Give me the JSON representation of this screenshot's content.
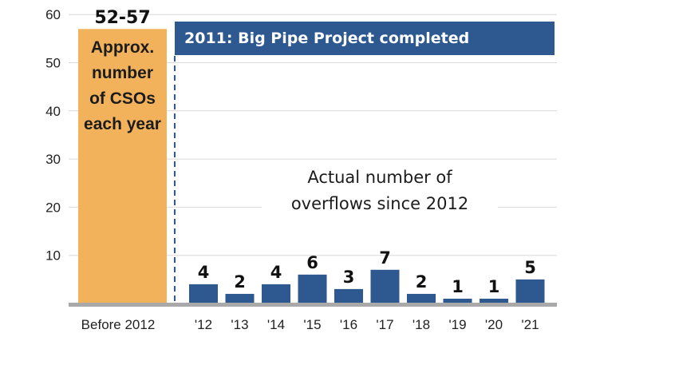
{
  "chart_data": {
    "type": "bar",
    "categories": [
      "'12",
      "'13",
      "'14",
      "'15",
      "'16",
      "'17",
      "'18",
      "'19",
      "'20",
      "'21"
    ],
    "values": [
      4,
      2,
      4,
      6,
      3,
      7,
      2,
      1,
      1,
      5
    ],
    "value_labels": [
      "4",
      "2",
      "4",
      "6",
      "3",
      "7",
      "2",
      "1",
      "1",
      "5"
    ],
    "before": {
      "category": "Before 2012",
      "range_label": "52-57",
      "value": 57,
      "text_lines": [
        "Approx.",
        "number",
        "of CSOs",
        "each year"
      ]
    },
    "banner": "2011: Big Pipe Project completed",
    "annotation_lines": [
      "Actual number of",
      "overflows since 2012"
    ],
    "y_ticks": [
      "10",
      "20",
      "30",
      "40",
      "50",
      "60"
    ],
    "ylim": [
      0,
      60
    ],
    "grid": true,
    "colors": {
      "bar": "#2d5890",
      "before_bar": "#f2b25c",
      "banner": "#2d5890",
      "baseline": "#a9a9a9",
      "grid": "#d9d9d9"
    }
  }
}
